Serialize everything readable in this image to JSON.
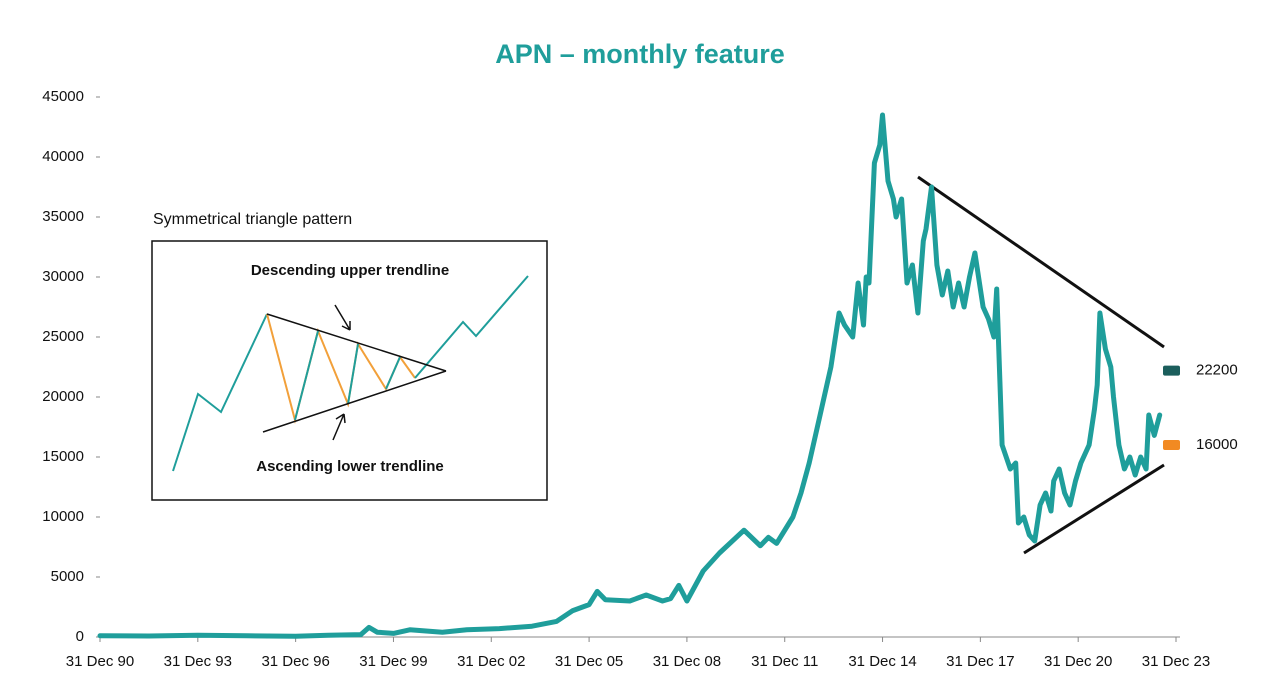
{
  "chart_data": {
    "type": "line",
    "title": "APN – monthly feature",
    "x": [
      "1990-12",
      "1992-06",
      "1993-12",
      "1995-06",
      "1996-12",
      "1997-12",
      "1998-12",
      "1999-03",
      "1999-06",
      "1999-12",
      "2000-06",
      "2001-06",
      "2002-03",
      "2003-03",
      "2004-03",
      "2004-12",
      "2005-06",
      "2005-12",
      "2006-03",
      "2006-06",
      "2007-03",
      "2007-09",
      "2008-03",
      "2008-06",
      "2008-09",
      "2008-12",
      "2009-06",
      "2009-12",
      "2010-09",
      "2011-03",
      "2011-06",
      "2011-09",
      "2012-03",
      "2012-06",
      "2012-09",
      "2013-01",
      "2013-05",
      "2013-08",
      "2013-10",
      "2014-01",
      "2014-03",
      "2014-05",
      "2014-06",
      "2014-07",
      "2014-09",
      "2014-11",
      "2014-12",
      "2015-02",
      "2015-04",
      "2015-05",
      "2015-07",
      "2015-09",
      "2015-11",
      "2016-01",
      "2016-03",
      "2016-04",
      "2016-06",
      "2016-08",
      "2016-10",
      "2016-12",
      "2017-02",
      "2017-04",
      "2017-06",
      "2017-08",
      "2017-10",
      "2018-01",
      "2018-03",
      "2018-05",
      "2018-06",
      "2018-08",
      "2018-11",
      "2019-01",
      "2019-02",
      "2019-04",
      "2019-06",
      "2019-08",
      "2019-10",
      "2019-12",
      "2020-02",
      "2020-03",
      "2020-05",
      "2020-07",
      "2020-09",
      "2020-11",
      "2021-01",
      "2021-04",
      "2021-06",
      "2021-07",
      "2021-08",
      "2021-10",
      "2021-12",
      "2022-01",
      "2022-03",
      "2022-05",
      "2022-07",
      "2022-09",
      "2022-11",
      "2023-01",
      "2023-02",
      "2023-04",
      "2023-06"
    ],
    "values": [
      100,
      80,
      150,
      100,
      60,
      150,
      200,
      800,
      400,
      300,
      600,
      400,
      600,
      700,
      900,
      1300,
      2200,
      2700,
      3800,
      3100,
      3000,
      3500,
      3000,
      3200,
      4300,
      3000,
      5500,
      7000,
      8900,
      7600,
      8300,
      7800,
      10000,
      12000,
      14500,
      18500,
      22500,
      27000,
      26000,
      25000,
      29500,
      26000,
      30000,
      29500,
      39500,
      41000,
      43500,
      38000,
      36500,
      35000,
      36500,
      29500,
      31000,
      27000,
      33000,
      34000,
      37500,
      31000,
      28500,
      30500,
      27500,
      29500,
      27500,
      30000,
      32000,
      27500,
      26500,
      25000,
      29000,
      16000,
      14000,
      14500,
      9500,
      10000,
      8500,
      8000,
      11000,
      12000,
      10500,
      13000,
      14000,
      12000,
      11000,
      13000,
      14500,
      16000,
      19000,
      21000,
      27000,
      24000,
      22500,
      20000,
      16000,
      14000,
      15000,
      13500,
      15000,
      14000,
      18500,
      16800,
      18500
    ],
    "color": "#1f9e9b",
    "xlim": [
      "1990-12",
      "2023-12"
    ],
    "xticks": [
      {
        "value": "1990-12",
        "label": "31 Dec 90"
      },
      {
        "value": "1993-12",
        "label": "31 Dec 93"
      },
      {
        "value": "1996-12",
        "label": "31 Dec 96"
      },
      {
        "value": "1999-12",
        "label": "31 Dec 99"
      },
      {
        "value": "2002-12",
        "label": "31 Dec 02"
      },
      {
        "value": "2005-12",
        "label": "31 Dec 05"
      },
      {
        "value": "2008-12",
        "label": "31 Dec 08"
      },
      {
        "value": "2011-12",
        "label": "31 Dec 11"
      },
      {
        "value": "2014-12",
        "label": "31 Dec 14"
      },
      {
        "value": "2017-12",
        "label": "31 Dec 17"
      },
      {
        "value": "2020-12",
        "label": "31 Dec 20"
      },
      {
        "value": "2023-12",
        "label": "31 Dec 23"
      }
    ],
    "ylim": [
      0,
      45000
    ],
    "yticks": [
      0,
      5000,
      10000,
      15000,
      20000,
      25000,
      30000,
      35000,
      40000,
      45000
    ],
    "grid": false,
    "markers": [
      {
        "value": 22200,
        "color": "#1b5e5c"
      },
      {
        "value": 16000,
        "color": "#f28a22"
      }
    ],
    "inset": {
      "title": "Symmetrical triangle pattern",
      "upper": "Descending upper trendline",
      "lower": "Ascending lower trendline"
    }
  }
}
